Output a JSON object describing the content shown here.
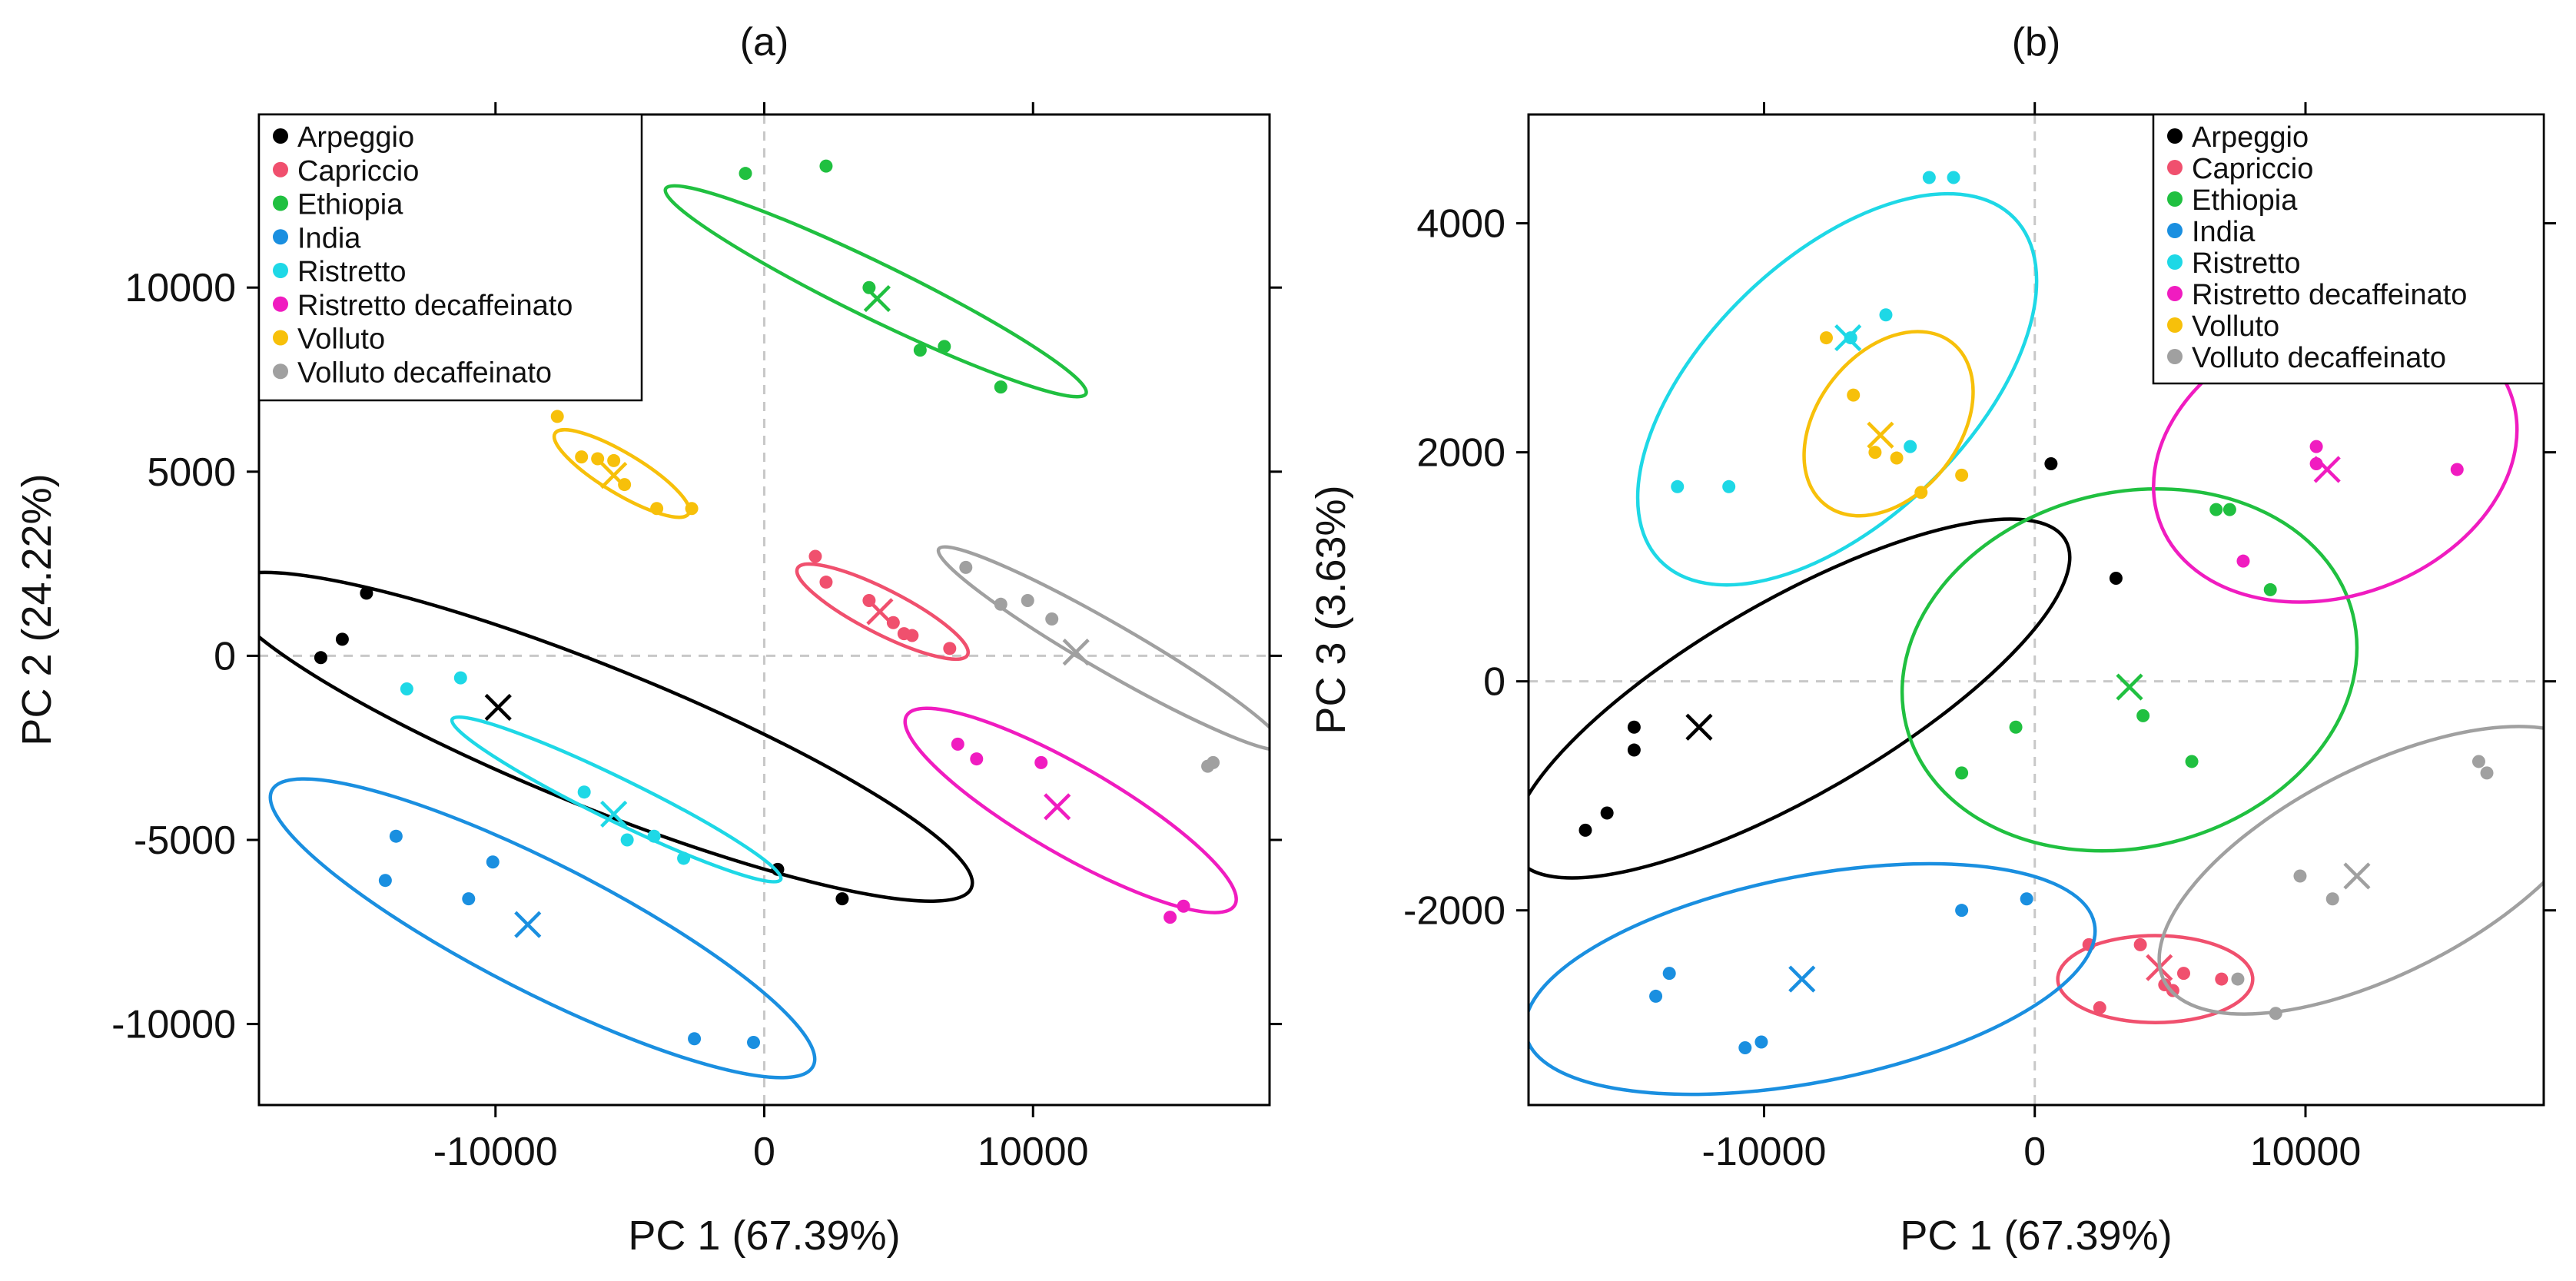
{
  "series_meta": [
    {
      "name": "Arpeggio",
      "color": "#000000"
    },
    {
      "name": "Capriccio",
      "color": "#f0506e"
    },
    {
      "name": "Ethiopia",
      "color": "#20c040"
    },
    {
      "name": "India",
      "color": "#1a8fe0"
    },
    {
      "name": "Ristretto",
      "color": "#1ed8e6"
    },
    {
      "name": "Ristretto decaffeinato",
      "color": "#f01cc0"
    },
    {
      "name": "Volluto",
      "color": "#f7c00a"
    },
    {
      "name": "Volluto decaffeinato",
      "color": "#a0a0a0"
    }
  ],
  "chart_data": [
    {
      "type": "scatter",
      "panel": "(a)",
      "title": "(a)",
      "xlabel": "PC 1 (67.39%)",
      "ylabel": "PC 2 (24.22%)",
      "xlim": [
        -18800,
        18800
      ],
      "ylim": [
        -12200,
        14700
      ],
      "xticks": [
        -10000,
        0,
        10000
      ],
      "yticks": [
        -10000,
        -5000,
        0,
        5000,
        10000
      ],
      "xtick_labels": [
        "-10000",
        "0",
        "10000"
      ],
      "ytick_labels": [
        "-10000",
        "-5000",
        "0",
        "5000",
        "10000"
      ],
      "legend_position": "top-left",
      "grid": false,
      "reference_lines": "dashed at x=0 and y=0",
      "series": [
        {
          "name": "Arpeggio",
          "points": [
            [
              -16500,
              -50
            ],
            [
              -15700,
              450
            ],
            [
              -14800,
              1700
            ],
            [
              500,
              -5800
            ],
            [
              2900,
              -6600
            ]
          ],
          "centroid": [
            -9900,
            -1400
          ],
          "ellipse": {
            "cx": -6200,
            "cy": -2200,
            "rx": 15000,
            "ry": 1900,
            "angle_deg": -22
          }
        },
        {
          "name": "Capriccio",
          "points": [
            [
              1900,
              2700
            ],
            [
              2300,
              2000
            ],
            [
              3900,
              1500
            ],
            [
              4800,
              900
            ],
            [
              5200,
              600
            ],
            [
              5500,
              550
            ],
            [
              6900,
              200
            ]
          ],
          "centroid": [
            4300,
            1200
          ],
          "ellipse": {
            "cx": 4400,
            "cy": 1200,
            "rx": 3550,
            "ry": 600,
            "angle_deg": -27
          }
        },
        {
          "name": "Ethiopia",
          "points": [
            [
              -700,
              13100
            ],
            [
              2300,
              13300
            ],
            [
              3900,
              10000
            ],
            [
              5800,
              8300
            ],
            [
              6700,
              8400
            ],
            [
              8800,
              7300
            ]
          ],
          "centroid": [
            4200,
            9700
          ],
          "ellipse": {
            "cx": 4150,
            "cy": 9900,
            "rx": 8700,
            "ry": 750,
            "angle_deg": -26
          }
        },
        {
          "name": "India",
          "points": [
            [
              -14100,
              -6100
            ],
            [
              -13700,
              -4900
            ],
            [
              -11000,
              -6600
            ],
            [
              -10100,
              -5600
            ],
            [
              -2600,
              -10400
            ],
            [
              -400,
              -10500
            ]
          ],
          "centroid": [
            -8800,
            -7300
          ],
          "ellipse": {
            "cx": -8250,
            "cy": -7400,
            "rx": 11300,
            "ry": 1750,
            "angle_deg": -27
          }
        },
        {
          "name": "Ristretto",
          "points": [
            [
              -13300,
              -900
            ],
            [
              -11300,
              -600
            ],
            [
              -6700,
              -3700
            ],
            [
              -5100,
              -5000
            ],
            [
              -4100,
              -4900
            ],
            [
              -3000,
              -5500
            ]
          ],
          "centroid": [
            -5600,
            -4300
          ],
          "ellipse": {
            "cx": -5500,
            "cy": -3900,
            "rx": 6800,
            "ry": 580,
            "angle_deg": -26
          }
        },
        {
          "name": "Ristretto decaffeinato",
          "points": [
            [
              7200,
              -2400
            ],
            [
              7900,
              -2800
            ],
            [
              10300,
              -2900
            ],
            [
              15100,
              -7100
            ],
            [
              15600,
              -6800
            ]
          ],
          "centroid": [
            10900,
            -4100
          ],
          "ellipse": {
            "cx": 11400,
            "cy": -4200,
            "rx": 7050,
            "ry": 1200,
            "angle_deg": -30
          }
        },
        {
          "name": "Volluto",
          "points": [
            [
              -7700,
              6500
            ],
            [
              -6800,
              5400
            ],
            [
              -6200,
              5350
            ],
            [
              -5600,
              5300
            ],
            [
              -5200,
              4650
            ],
            [
              -4000,
              4000
            ],
            [
              -2700,
              4000
            ]
          ],
          "centroid": [
            -5600,
            4900
          ],
          "ellipse": {
            "cx": -5300,
            "cy": 4950,
            "rx": 2900,
            "ry": 550,
            "angle_deg": -31
          }
        },
        {
          "name": "Volluto decaffeinato",
          "points": [
            [
              7500,
              2400
            ],
            [
              8800,
              1400
            ],
            [
              9800,
              1500
            ],
            [
              10700,
              1000
            ],
            [
              16500,
              -3000
            ],
            [
              16700,
              -2900
            ]
          ],
          "centroid": [
            11600,
            100
          ],
          "ellipse": {
            "cx": 12900,
            "cy": 200,
            "rx": 7400,
            "ry": 650,
            "angle_deg": -30
          }
        }
      ]
    },
    {
      "type": "scatter",
      "panel": "(b)",
      "title": "(b)",
      "xlabel": "PC 1 (67.39%)",
      "ylabel": "PC 3 (3.63%)",
      "xlim": [
        -18700,
        18800
      ],
      "ylim": [
        -3700,
        4950
      ],
      "xticks": [
        -10000,
        0,
        10000
      ],
      "yticks": [
        -2000,
        0,
        2000,
        4000
      ],
      "xtick_labels": [
        "-10000",
        "0",
        "10000"
      ],
      "ytick_labels": [
        "-2000",
        "0",
        "2000",
        "4000"
      ],
      "legend_position": "top-right",
      "grid": false,
      "reference_lines": "dashed at x=0 and y=0",
      "series": [
        {
          "name": "Arpeggio",
          "points": [
            [
              -16600,
              -1300
            ],
            [
              -15800,
              -1150
            ],
            [
              -14800,
              -400
            ],
            [
              -14800,
              -600
            ],
            [
              600,
              1900
            ],
            [
              3000,
              900
            ]
          ],
          "centroid": [
            -12400,
            -400
          ],
          "ellipse": {
            "cx": -9000,
            "cy": -150,
            "rx": 11700,
            "ry": 850,
            "angle_deg": 30
          }
        },
        {
          "name": "Capriccio",
          "points": [
            [
              2000,
              -2300
            ],
            [
              2400,
              -2850
            ],
            [
              3900,
              -2300
            ],
            [
              4800,
              -2650
            ],
            [
              5100,
              -2700
            ],
            [
              5500,
              -2550
            ],
            [
              6900,
              -2600
            ]
          ],
          "centroid": [
            4600,
            -2500
          ],
          "ellipse": {
            "cx": 4450,
            "cy": -2600,
            "rx": 3600,
            "ry": 380,
            "angle_deg": 0
          }
        },
        {
          "name": "Ethiopia",
          "points": [
            [
              -2700,
              -800
            ],
            [
              -700,
              -400
            ],
            [
              4000,
              -300
            ],
            [
              5800,
              -700
            ],
            [
              6700,
              1500
            ],
            [
              7200,
              1500
            ],
            [
              8700,
              800
            ]
          ],
          "centroid": [
            3500,
            -50
          ],
          "ellipse": {
            "cx": 3500,
            "cy": 100,
            "rx": 8500,
            "ry": 1550,
            "angle_deg": 14
          }
        },
        {
          "name": "India",
          "points": [
            [
              -14000,
              -2750
            ],
            [
              -13500,
              -2550
            ],
            [
              -10700,
              -3200
            ],
            [
              -10100,
              -3150
            ],
            [
              -2700,
              -2000
            ],
            [
              -300,
              -1900
            ]
          ],
          "centroid": [
            -8600,
            -2600
          ],
          "ellipse": {
            "cx": -8300,
            "cy": -2600,
            "rx": 10700,
            "ry": 900,
            "angle_deg": 11
          }
        },
        {
          "name": "Ristretto",
          "points": [
            [
              -13200,
              1700
            ],
            [
              -11300,
              1700
            ],
            [
              -6800,
              3000
            ],
            [
              -5500,
              3200
            ],
            [
              -4600,
              2050
            ],
            [
              -3900,
              4400
            ],
            [
              -3000,
              4400
            ]
          ],
          "centroid": [
            -6900,
            3000
          ],
          "ellipse": {
            "cx": -7300,
            "cy": 2550,
            "rx": 9100,
            "ry": 1150,
            "angle_deg": 44
          }
        },
        {
          "name": "Ristretto decaffeinato",
          "points": [
            [
              7700,
              1050
            ],
            [
              10400,
              2050
            ],
            [
              10400,
              1900
            ],
            [
              15600,
              1850
            ]
          ],
          "centroid": [
            10800,
            1850
          ],
          "ellipse": {
            "cx": 11100,
            "cy": 1950,
            "rx": 6900,
            "ry": 1200,
            "angle_deg": 20
          }
        },
        {
          "name": "Volluto",
          "points": [
            [
              -7700,
              3000
            ],
            [
              -6700,
              2500
            ],
            [
              -5900,
              2000
            ],
            [
              -5100,
              1950
            ],
            [
              -4200,
              1650
            ],
            [
              -2700,
              1800
            ]
          ],
          "centroid": [
            -5700,
            2150
          ],
          "ellipse": {
            "cx": -5400,
            "cy": 2250,
            "rx": 3800,
            "ry": 620,
            "angle_deg": 52
          }
        },
        {
          "name": "Volluto decaffeinato",
          "points": [
            [
              7500,
              -2600
            ],
            [
              8900,
              -2900
            ],
            [
              9800,
              -1700
            ],
            [
              11000,
              -1900
            ],
            [
              16400,
              -700
            ],
            [
              16700,
              -800
            ]
          ],
          "centroid": [
            11900,
            -1700
          ],
          "ellipse": {
            "cx": 12800,
            "cy": -1650,
            "rx": 9000,
            "ry": 900,
            "angle_deg": 27
          }
        }
      ]
    }
  ]
}
